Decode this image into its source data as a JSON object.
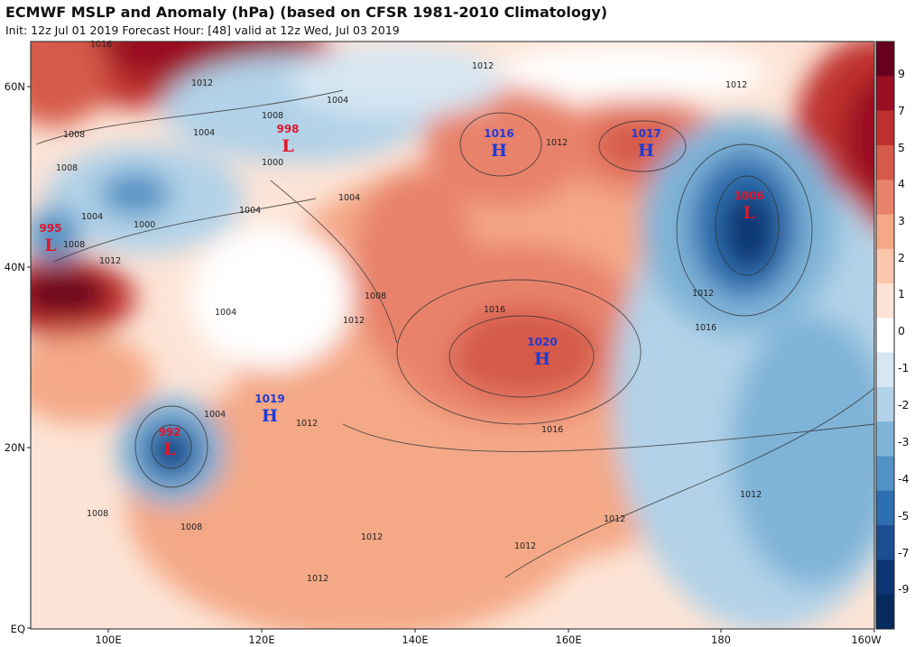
{
  "header": {
    "title": "ECMWF MSLP and Anomaly (hPa) (based on CFSR 1981-2010 Climatology)",
    "subtitle": "Init: 12z Jul 01 2019   Forecast Hour: [48]   valid at 12z Wed, Jul 03 2019"
  },
  "axes": {
    "lat_labels": [
      "60N",
      "40N",
      "20N",
      "EQ"
    ],
    "lon_labels": [
      "100E",
      "120E",
      "140E",
      "160E",
      "180",
      "160W"
    ]
  },
  "colorbar": {
    "labels": [
      "9",
      "7",
      "5",
      "4",
      "3",
      "2",
      "1",
      "0",
      "-1",
      "-2",
      "-3",
      "-4",
      "-5",
      "-7",
      "-9"
    ],
    "colors": [
      "#67001f",
      "#9a0f24",
      "#c0302f",
      "#d65a4a",
      "#e8826a",
      "#f4a886",
      "#fac7ad",
      "#fde4d6",
      "#ffffff",
      "#d6e6f3",
      "#b1d2e8",
      "#7fb3d7",
      "#5293c5",
      "#2e6fb0",
      "#1b4f92",
      "#0b3572",
      "#062a5e"
    ]
  },
  "pressure_centers": [
    {
      "type": "H",
      "value": "1016",
      "color": "#1f3bd6"
    },
    {
      "type": "H",
      "value": "1017",
      "color": "#1f3bd6"
    },
    {
      "type": "H",
      "value": "1020",
      "color": "#1f3bd6"
    },
    {
      "type": "H",
      "value": "1019",
      "color": "#1f3bd6"
    },
    {
      "type": "L",
      "value": "998",
      "color": "#e0162b"
    },
    {
      "type": "L",
      "value": "995",
      "color": "#e0162b"
    },
    {
      "type": "L",
      "value": "992",
      "color": "#e0162b"
    },
    {
      "type": "L",
      "value": "1006",
      "color": "#e0162b"
    }
  ],
  "contour_labels": [
    "1016",
    "1012",
    "1008",
    "1004",
    "1008",
    "1004",
    "1008",
    "1004",
    "1000",
    "1004",
    "1000",
    "1004",
    "1008",
    "1012",
    "1004",
    "1008",
    "1012",
    "1004",
    "1012",
    "1012",
    "1016",
    "1016",
    "1016",
    "1012",
    "1012",
    "1012",
    "1012",
    "1012",
    "1012",
    "1008",
    "1008",
    "1012",
    "1012"
  ]
}
